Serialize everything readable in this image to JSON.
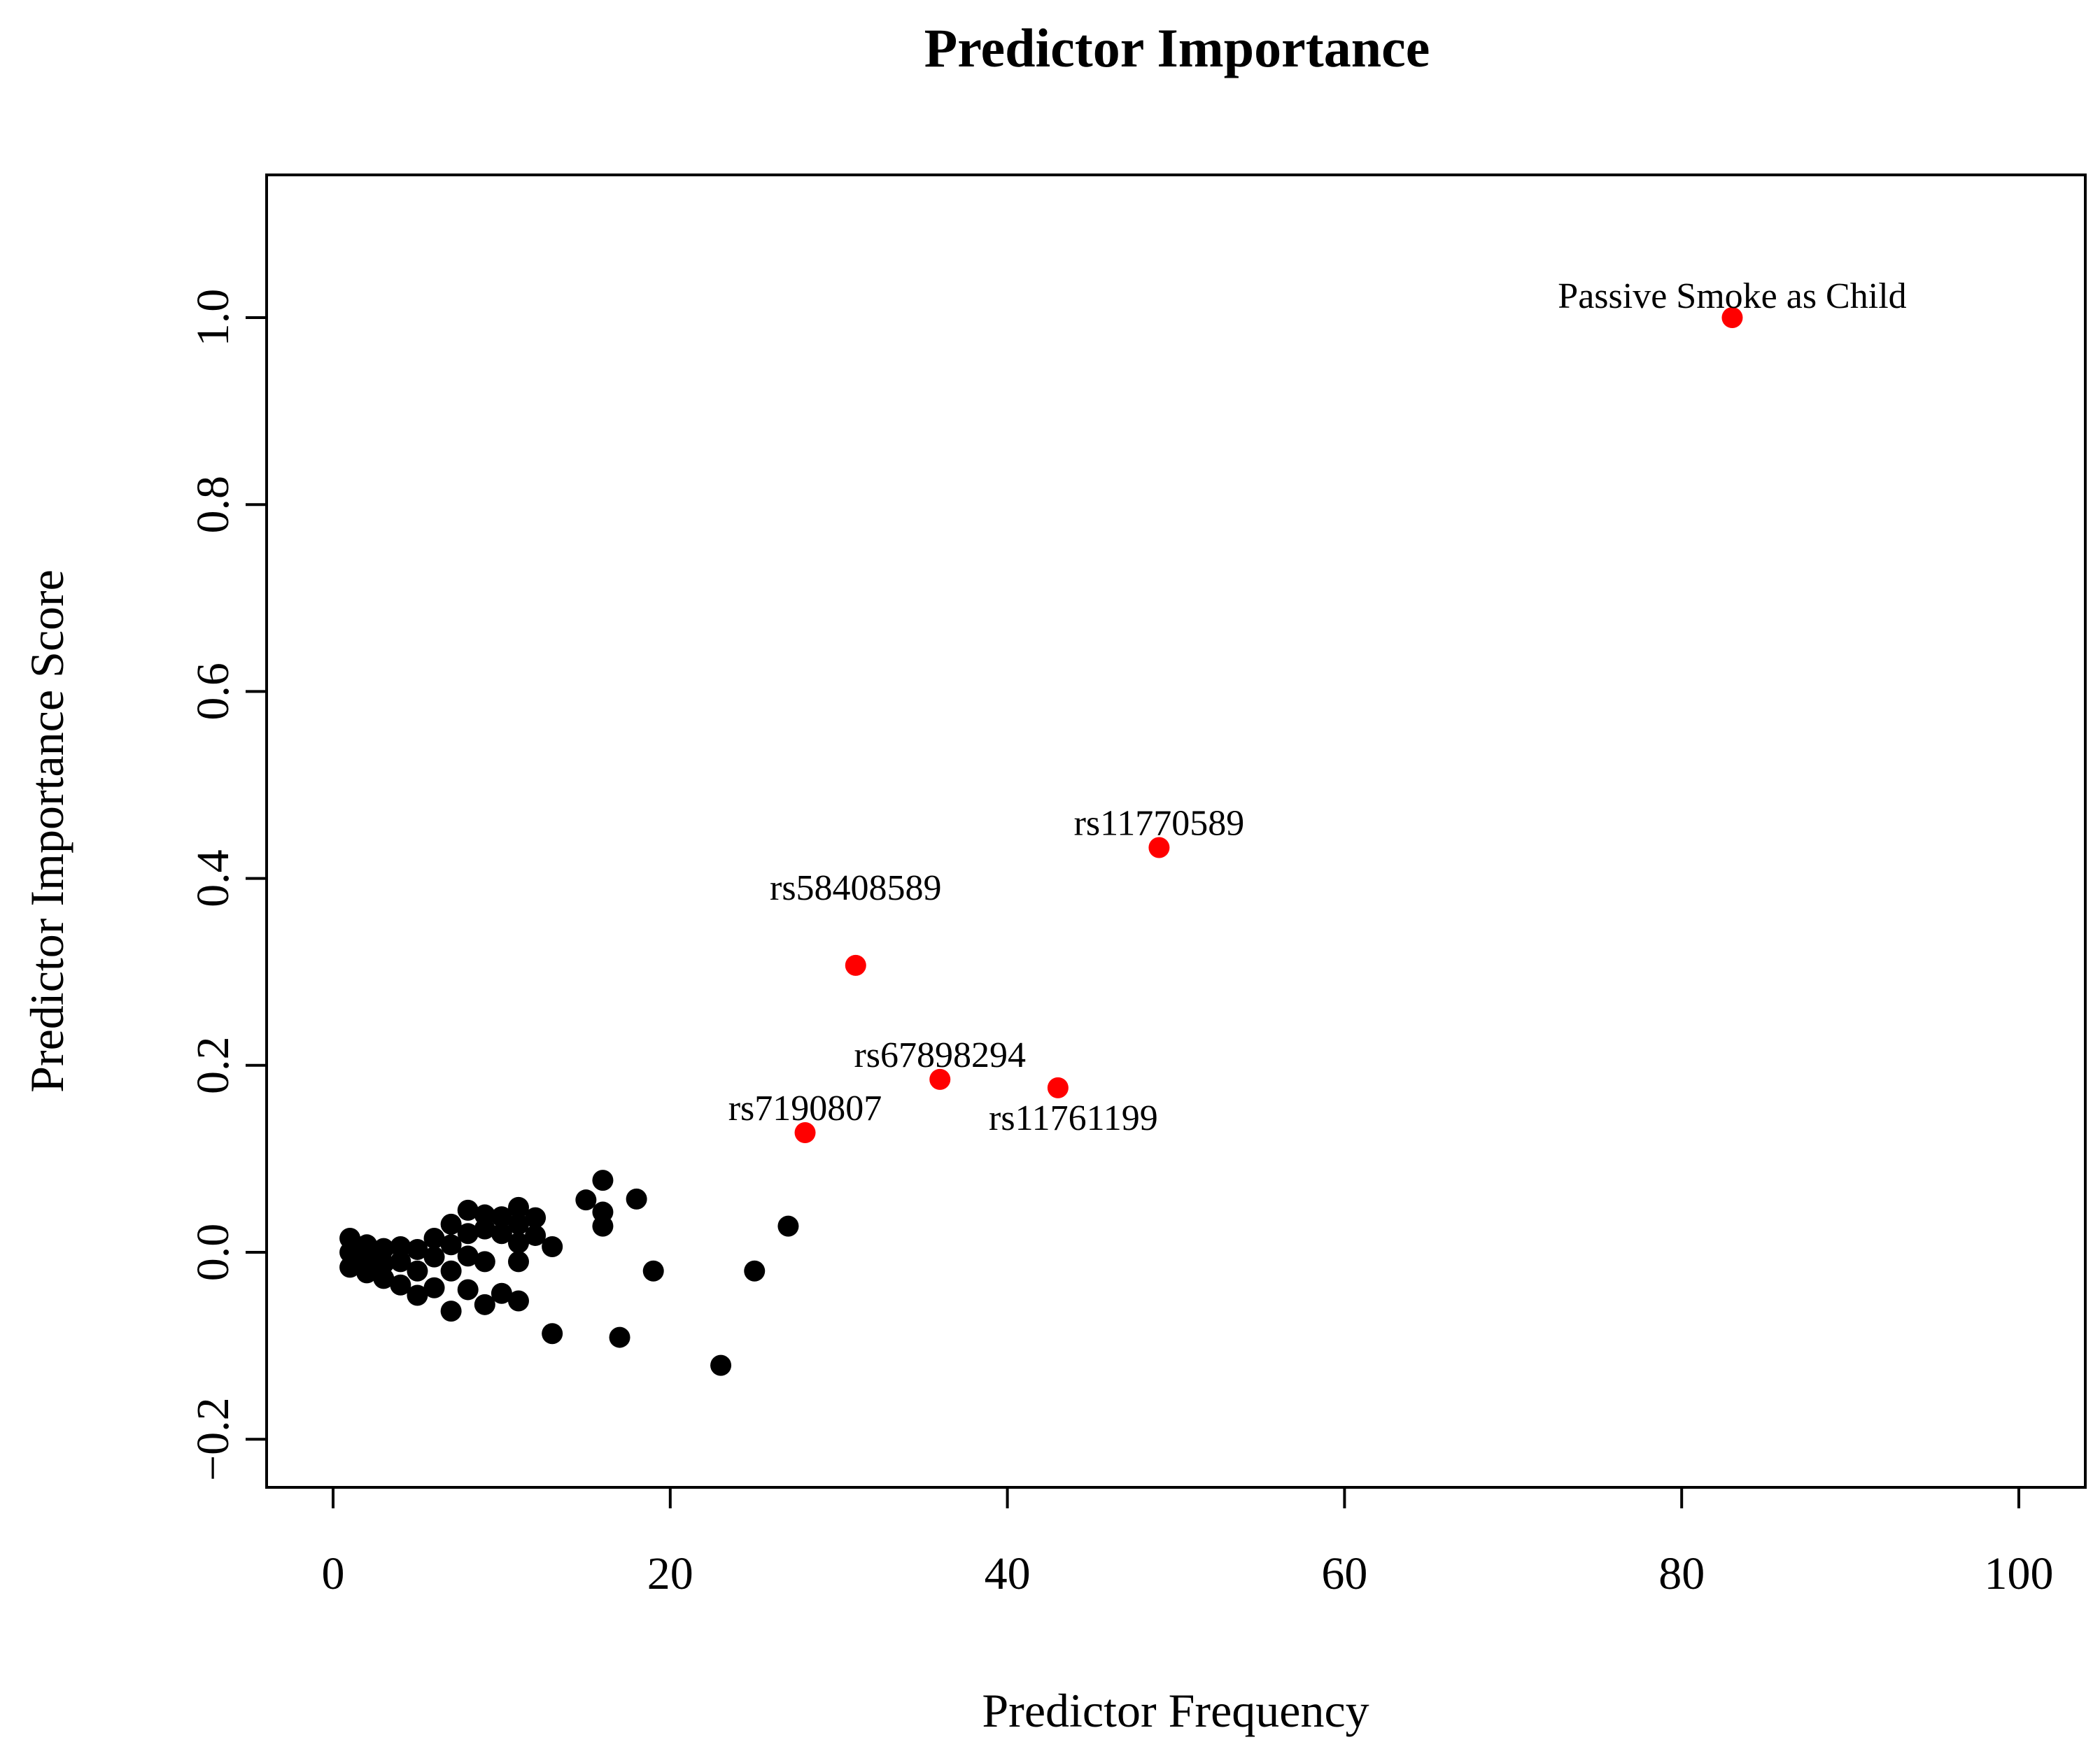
{
  "chart_data": {
    "type": "scatter",
    "title": "Predictor Importance",
    "xlabel": "Predictor Frequency",
    "ylabel": "Predictor Importance Score",
    "xlim": [
      -4,
      104
    ],
    "ylim": [
      -0.25,
      1.15
    ],
    "x_ticks": [
      0,
      20,
      40,
      60,
      80,
      100
    ],
    "y_ticks": [
      -0.2,
      0.0,
      0.2,
      0.4,
      0.6,
      0.8,
      1.0
    ],
    "x_tick_labels": [
      "0",
      "20",
      "40",
      "60",
      "80",
      "100"
    ],
    "y_tick_labels": [
      "−0.2",
      "0.0",
      "0.2",
      "0.4",
      "0.6",
      "0.8",
      "1.0"
    ],
    "grid": false,
    "colors": {
      "default_point": "#000000",
      "highlight_point": "#ff0000",
      "axes": "#000000"
    },
    "series": [
      {
        "color": "#000000",
        "points": [
          {
            "x": 1,
            "y": 0.015
          },
          {
            "x": 1,
            "y": 0.0
          },
          {
            "x": 1,
            "y": -0.016
          },
          {
            "x": 2,
            "y": 0.008
          },
          {
            "x": 2,
            "y": -0.005
          },
          {
            "x": 2,
            "y": -0.022
          },
          {
            "x": 3,
            "y": 0.004
          },
          {
            "x": 3,
            "y": -0.012
          },
          {
            "x": 3,
            "y": -0.028
          },
          {
            "x": 4,
            "y": 0.006
          },
          {
            "x": 4,
            "y": -0.01
          },
          {
            "x": 4,
            "y": -0.035
          },
          {
            "x": 5,
            "y": 0.003
          },
          {
            "x": 5,
            "y": -0.02
          },
          {
            "x": 5,
            "y": -0.046
          },
          {
            "x": 6,
            "y": 0.015
          },
          {
            "x": 6,
            "y": -0.005
          },
          {
            "x": 6,
            "y": -0.038
          },
          {
            "x": 7,
            "y": 0.03
          },
          {
            "x": 7,
            "y": 0.008
          },
          {
            "x": 7,
            "y": -0.02
          },
          {
            "x": 7,
            "y": -0.063
          },
          {
            "x": 8,
            "y": 0.045
          },
          {
            "x": 8,
            "y": 0.02
          },
          {
            "x": 8,
            "y": -0.004
          },
          {
            "x": 8,
            "y": -0.04
          },
          {
            "x": 9,
            "y": 0.04
          },
          {
            "x": 9,
            "y": 0.025
          },
          {
            "x": 9,
            "y": -0.01
          },
          {
            "x": 9,
            "y": -0.056
          },
          {
            "x": 10,
            "y": 0.038
          },
          {
            "x": 10,
            "y": 0.02
          },
          {
            "x": 10,
            "y": -0.044
          },
          {
            "x": 11,
            "y": 0.048
          },
          {
            "x": 11,
            "y": 0.03
          },
          {
            "x": 11,
            "y": 0.01
          },
          {
            "x": 11,
            "y": -0.01
          },
          {
            "x": 11,
            "y": -0.052
          },
          {
            "x": 12,
            "y": 0.037
          },
          {
            "x": 12,
            "y": 0.018
          },
          {
            "x": 13,
            "y": 0.006
          },
          {
            "x": 13,
            "y": -0.087
          },
          {
            "x": 15,
            "y": 0.056
          },
          {
            "x": 16,
            "y": 0.077
          },
          {
            "x": 16,
            "y": 0.043
          },
          {
            "x": 16,
            "y": 0.028
          },
          {
            "x": 17,
            "y": -0.091
          },
          {
            "x": 18,
            "y": 0.057
          },
          {
            "x": 19,
            "y": -0.02
          },
          {
            "x": 23,
            "y": -0.121
          },
          {
            "x": 25,
            "y": -0.02
          },
          {
            "x": 27,
            "y": 0.028
          }
        ]
      },
      {
        "color": "#ff0000",
        "points": [
          {
            "x": 83,
            "y": 1.0,
            "label": "Passive Smoke as Child"
          },
          {
            "x": 49,
            "y": 0.433,
            "label": "rs11770589"
          },
          {
            "x": 31,
            "y": 0.307,
            "label": "rs58408589"
          },
          {
            "x": 36,
            "y": 0.185,
            "label": "rs67898294"
          },
          {
            "x": 43,
            "y": 0.176,
            "label": "rs11761199"
          },
          {
            "x": 28,
            "y": 0.128,
            "label": "rs7190807"
          }
        ]
      }
    ]
  }
}
